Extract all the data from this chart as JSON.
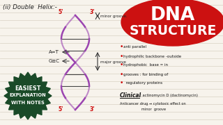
{
  "bg_color": "#f7f3ec",
  "line_color": "#d0c8b8",
  "title_bg": "#cc1111",
  "title_line1": "DNA",
  "title_line2": "STRUCTURE",
  "title_color": "#ffffff",
  "left_heading": "(ii) Double  Helix:-",
  "helix_color": "#9b44b0",
  "bullet_color": "#cc0000",
  "bullets": [
    "anti parallel",
    "hydrophilic backbone -outside",
    "hydrophobic  base = in",
    "grooves : for binding of",
    "  regulatory proteins"
  ],
  "clinical_label": "Clinical",
  "clinical_text": ": actinomycin D (dactinomycin)",
  "clinical_sub": "Anticancer drug → cytotoxic effect on",
  "clinical_sub2": "                   minor  groove",
  "stamp_bg": "#1a4a28",
  "stamp_line1": "EASIEST",
  "stamp_line2": "EXPLANATION",
  "stamp_line3": "WITH NOTES",
  "stamp_color": "#ffffff",
  "minor_groove": "minor groove.",
  "major_groove": "major groove",
  "at_label": "A=T",
  "gc_label": "G≡C"
}
